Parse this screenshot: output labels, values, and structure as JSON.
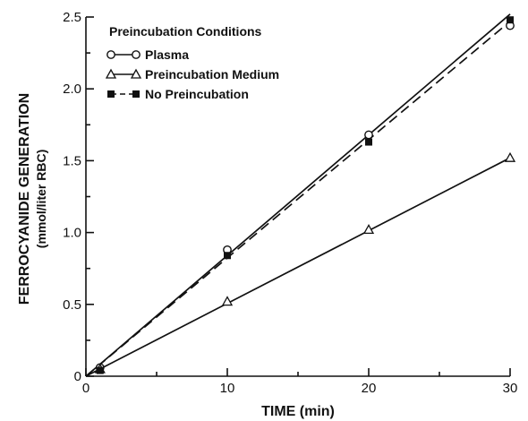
{
  "chart_data": {
    "type": "line",
    "xlabel": "TIME (min)",
    "ylabel": "FERROCYANIDE GENERATION",
    "ylabel_sub": "(mmol/liter RBC)",
    "xlim": [
      0,
      30
    ],
    "ylim": [
      0,
      2.5
    ],
    "x_ticks": [
      "0",
      "10",
      "20",
      "30"
    ],
    "y_ticks": [
      "0",
      "0.5",
      "1.0",
      "1.5",
      "2.0",
      "2.5"
    ],
    "grid": false,
    "legend_title": "Preincubation Conditions",
    "legend_position": "top-left",
    "series": [
      {
        "name": "Plasma",
        "marker": "open-circle",
        "line": "solid",
        "x": [
          1,
          10,
          20,
          30
        ],
        "y": [
          0.06,
          0.88,
          1.68,
          2.44
        ]
      },
      {
        "name": "Preincubation Medium",
        "marker": "open-triangle",
        "line": "solid",
        "x": [
          1,
          10,
          20,
          30
        ],
        "y": [
          0.05,
          0.52,
          1.02,
          1.52
        ]
      },
      {
        "name": "No Preincubation",
        "marker": "filled-square",
        "line": "dashed",
        "x": [
          1,
          10,
          20,
          30
        ],
        "y": [
          0.04,
          0.84,
          1.63,
          2.48
        ]
      }
    ],
    "fit_lines": [
      {
        "series": "Plasma",
        "line": "solid",
        "x": [
          0,
          30
        ],
        "y": [
          0,
          2.52
        ]
      },
      {
        "series": "Preincubation Medium",
        "line": "solid",
        "x": [
          0,
          30
        ],
        "y": [
          0,
          1.52
        ]
      },
      {
        "series": "No Preincubation",
        "line": "dashed",
        "x": [
          0,
          30
        ],
        "y": [
          0,
          2.47
        ]
      }
    ]
  }
}
